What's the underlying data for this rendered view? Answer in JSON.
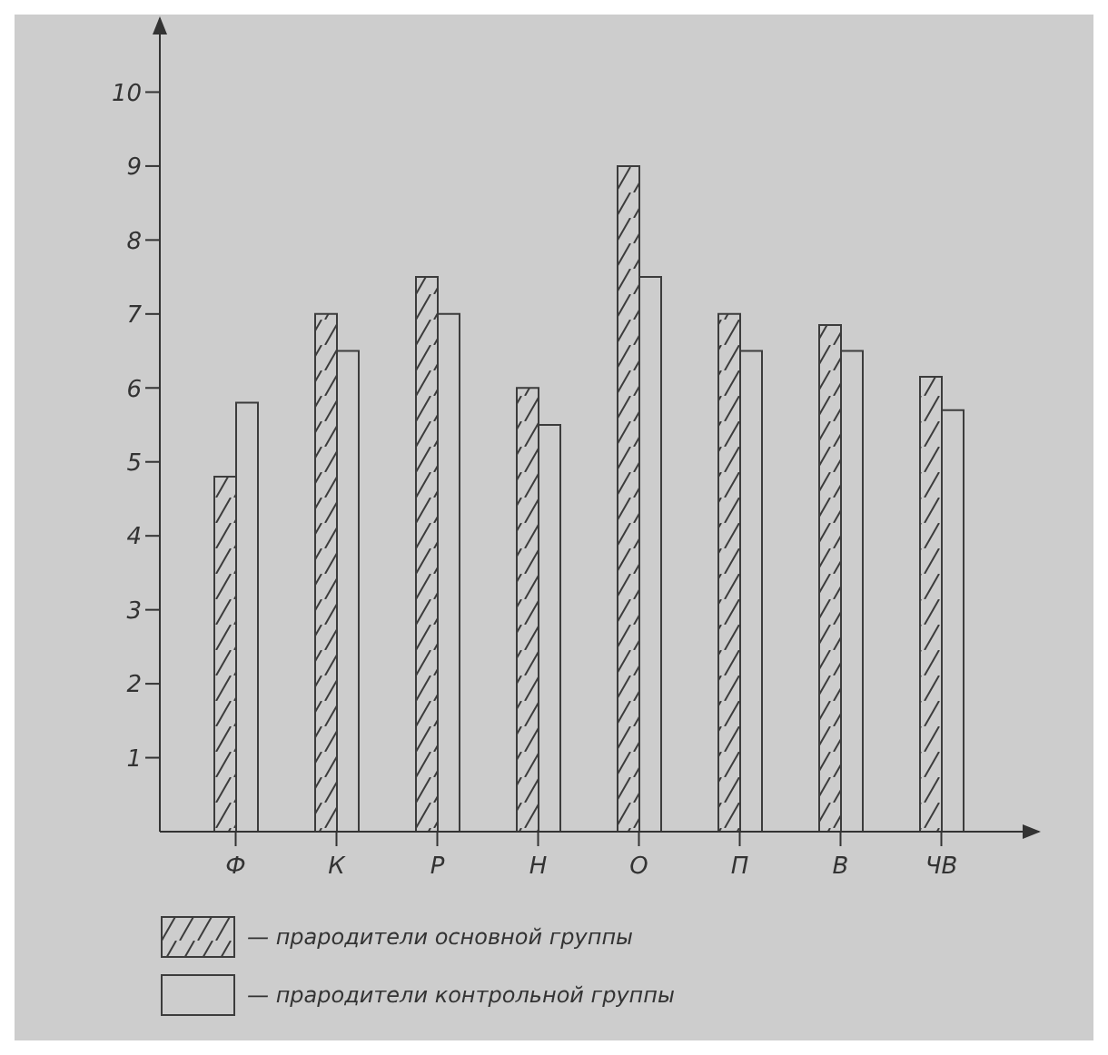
{
  "chart_data": {
    "type": "bar",
    "categories": [
      "Ф",
      "К",
      "Р",
      "Н",
      "О",
      "П",
      "В",
      "ЧВ"
    ],
    "series": [
      {
        "name": "— прародители основной группы",
        "color": "#3c3c3c",
        "values": [
          4.8,
          7.0,
          7.5,
          6.0,
          9.0,
          7.0,
          6.85,
          6.15
        ]
      },
      {
        "name": "— прародители контрольной группы",
        "color": "#3c3c3c",
        "values": [
          5.8,
          6.5,
          7.0,
          5.5,
          7.5,
          6.5,
          6.5,
          5.7
        ]
      }
    ],
    "ylim": [
      0,
      11
    ],
    "yticks": [
      1,
      2,
      3,
      4,
      5,
      6,
      7,
      8,
      9,
      10
    ],
    "legend": "bottom"
  }
}
